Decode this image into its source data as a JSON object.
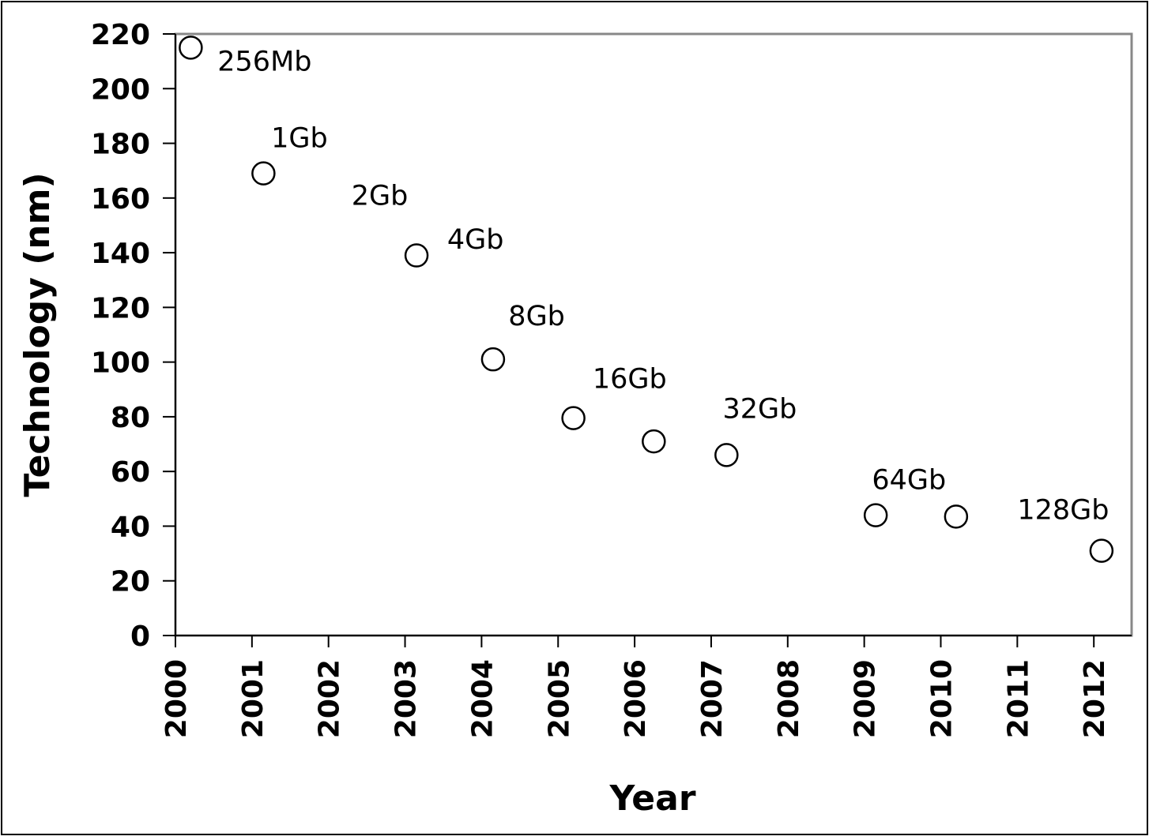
{
  "chart_data": {
    "type": "scatter",
    "title": "",
    "xlabel": "Year",
    "ylabel": "Technology (nm)",
    "xlim": [
      2000,
      2012.45
    ],
    "ylim": [
      0,
      220
    ],
    "x_ticks": [
      "2000",
      "2001",
      "2002",
      "2003",
      "2004",
      "2005",
      "2006",
      "2007",
      "2008",
      "2009",
      "2010",
      "2011",
      "2012"
    ],
    "y_ticks": [
      "0",
      "20",
      "40",
      "60",
      "80",
      "100",
      "120",
      "140",
      "160",
      "180",
      "200",
      "220"
    ],
    "grid": false,
    "legend": "none",
    "marker": "open-circle",
    "points": [
      {
        "x": 2000.2,
        "y": 215
      },
      {
        "x": 2001.15,
        "y": 169
      },
      {
        "x": 2003.15,
        "y": 139
      },
      {
        "x": 2004.15,
        "y": 101
      },
      {
        "x": 2005.2,
        "y": 79.5
      },
      {
        "x": 2006.25,
        "y": 71
      },
      {
        "x": 2007.2,
        "y": 66
      },
      {
        "x": 2009.15,
        "y": 44
      },
      {
        "x": 2010.2,
        "y": 43.5
      },
      {
        "x": 2012.1,
        "y": 31
      }
    ],
    "annotations": [
      {
        "text": "256Mb",
        "x": 2000.55,
        "y": 210
      },
      {
        "text": "1Gb",
        "x": 2001.25,
        "y": 182
      },
      {
        "text": "2Gb",
        "x": 2002.3,
        "y": 161
      },
      {
        "text": "4Gb",
        "x": 2003.55,
        "y": 145
      },
      {
        "text": "8Gb",
        "x": 2004.35,
        "y": 117
      },
      {
        "text": "16Gb",
        "x": 2005.45,
        "y": 94
      },
      {
        "text": "32Gb",
        "x": 2007.15,
        "y": 83
      },
      {
        "text": "64Gb",
        "x": 2009.1,
        "y": 57
      },
      {
        "text": "128Gb",
        "x": 2011.0,
        "y": 46
      }
    ]
  }
}
